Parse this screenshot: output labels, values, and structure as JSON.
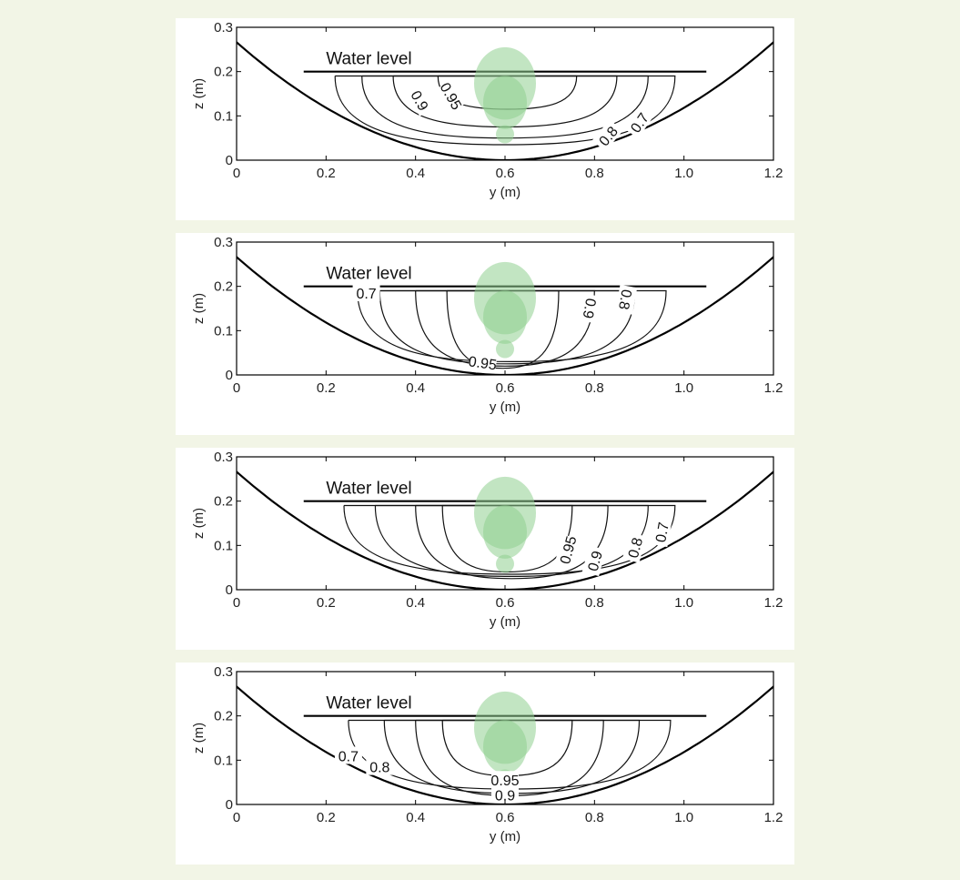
{
  "figure": {
    "background": "#f2f5e6",
    "panel_background": "#ffffff",
    "plant_color": "#8fd08f"
  },
  "chart_data": [
    {
      "type": "contour",
      "xlabel": "y (m)",
      "ylabel": "z (m)",
      "xlim": [
        0,
        1.2
      ],
      "ylim": [
        0,
        0.3
      ],
      "xticks": [
        "0",
        "0.2",
        "0.4",
        "0.6",
        "0.8",
        "1.0",
        "1.2"
      ],
      "yticks": [
        "0",
        "0.1",
        "0.2",
        "0.3"
      ],
      "grid": false,
      "channel": {
        "center_y": 0.6,
        "half_width": 0.52,
        "depth": 0.2
      },
      "water_level": {
        "z": 0.2,
        "y_range": [
          0.15,
          1.05
        ],
        "label": "Water level"
      },
      "plant": {
        "y": 0.6,
        "z_top": 0.255,
        "z_bottom": 0.04
      },
      "contours": [
        {
          "level": 0.7,
          "y_range": [
            0.22,
            0.98
          ],
          "z_range": [
            0.035,
            0.19
          ]
        },
        {
          "level": 0.8,
          "y_range": [
            0.28,
            0.92
          ],
          "z_range": [
            0.05,
            0.19
          ]
        },
        {
          "level": 0.9,
          "y_range": [
            0.35,
            0.85
          ],
          "z_range": [
            0.075,
            0.19
          ]
        },
        {
          "level": 0.95,
          "y_range": [
            0.45,
            0.76
          ],
          "z_range": [
            0.115,
            0.19
          ]
        }
      ],
      "contour_labels": [
        {
          "text": "0.9",
          "y": 0.41,
          "z": 0.135,
          "rotation": 60
        },
        {
          "text": "0.95",
          "y": 0.48,
          "z": 0.145,
          "rotation": 60
        },
        {
          "text": "0.8",
          "y": 0.83,
          "z": 0.055,
          "rotation": -50
        },
        {
          "text": "0.7",
          "y": 0.9,
          "z": 0.085,
          "rotation": -55
        }
      ]
    },
    {
      "type": "contour",
      "xlabel": "y (m)",
      "ylabel": "z (m)",
      "xlim": [
        0,
        1.2
      ],
      "ylim": [
        0,
        0.3
      ],
      "xticks": [
        "0",
        "0.2",
        "0.4",
        "0.6",
        "0.8",
        "1.0",
        "1.2"
      ],
      "yticks": [
        "0",
        "0.1",
        "0.2",
        "0.3"
      ],
      "grid": false,
      "channel": {
        "center_y": 0.6,
        "half_width": 0.52,
        "depth": 0.2
      },
      "water_level": {
        "z": 0.2,
        "y_range": [
          0.15,
          1.05
        ],
        "label": "Water level"
      },
      "plant": {
        "y": 0.6,
        "z_top": 0.255,
        "z_bottom": 0.04
      },
      "contours": [
        {
          "level": 0.7,
          "y_range": [
            0.27,
            0.96
          ],
          "z_range": [
            0.03,
            0.19
          ]
        },
        {
          "level": 0.8,
          "y_range": [
            0.32,
            0.89
          ],
          "z_range": [
            0.025,
            0.19
          ]
        },
        {
          "level": 0.9,
          "y_range": [
            0.4,
            0.8
          ],
          "z_range": [
            0.02,
            0.19
          ]
        },
        {
          "level": 0.95,
          "y_range": [
            0.47,
            0.72
          ],
          "z_range": [
            0.015,
            0.19
          ]
        }
      ],
      "contour_labels": [
        {
          "text": "0.7",
          "y": 0.29,
          "z": 0.185,
          "rotation": 0
        },
        {
          "text": "0.9",
          "y": 0.79,
          "z": 0.15,
          "rotation": 100
        },
        {
          "text": "0.8",
          "y": 0.87,
          "z": 0.17,
          "rotation": 100
        },
        {
          "text": "0.95",
          "y": 0.55,
          "z": 0.028,
          "rotation": 8
        }
      ]
    },
    {
      "type": "contour",
      "xlabel": "y (m)",
      "ylabel": "z (m)",
      "xlim": [
        0,
        1.2
      ],
      "ylim": [
        0,
        0.3
      ],
      "xticks": [
        "0",
        "0.2",
        "0.4",
        "0.6",
        "0.8",
        "1.0",
        "1.2"
      ],
      "yticks": [
        "0",
        "0.1",
        "0.2",
        "0.3"
      ],
      "grid": false,
      "channel": {
        "center_y": 0.6,
        "half_width": 0.52,
        "depth": 0.2
      },
      "water_level": {
        "z": 0.2,
        "y_range": [
          0.15,
          1.05
        ],
        "label": "Water level"
      },
      "plant": {
        "y": 0.6,
        "z_top": 0.255,
        "z_bottom": 0.04
      },
      "contours": [
        {
          "level": 0.7,
          "y_range": [
            0.24,
            0.98
          ],
          "z_range": [
            0.035,
            0.19
          ]
        },
        {
          "level": 0.8,
          "y_range": [
            0.31,
            0.92
          ],
          "z_range": [
            0.03,
            0.19
          ]
        },
        {
          "level": 0.9,
          "y_range": [
            0.4,
            0.83
          ],
          "z_range": [
            0.025,
            0.19
          ]
        },
        {
          "level": 0.95,
          "y_range": [
            0.46,
            0.75
          ],
          "z_range": [
            0.04,
            0.19
          ]
        }
      ],
      "contour_labels": [
        {
          "text": "0.95",
          "y": 0.74,
          "z": 0.09,
          "rotation": -75
        },
        {
          "text": "0.9",
          "y": 0.8,
          "z": 0.065,
          "rotation": -75
        },
        {
          "text": "0.8",
          "y": 0.89,
          "z": 0.095,
          "rotation": -75
        },
        {
          "text": "0.7",
          "y": 0.95,
          "z": 0.13,
          "rotation": -80
        }
      ]
    },
    {
      "type": "contour",
      "xlabel": "y (m)",
      "ylabel": "z (m)",
      "xlim": [
        0,
        1.2
      ],
      "ylim": [
        0,
        0.3
      ],
      "xticks": [
        "0",
        "0.2",
        "0.4",
        "0.6",
        "0.8",
        "1.0",
        "1.2"
      ],
      "yticks": [
        "0",
        "0.1",
        "0.2",
        "0.3"
      ],
      "grid": false,
      "channel": {
        "center_y": 0.6,
        "half_width": 0.52,
        "depth": 0.2
      },
      "water_level": {
        "z": 0.2,
        "y_range": [
          0.15,
          1.05
        ],
        "label": "Water level"
      },
      "plant": {
        "y": 0.6,
        "z_top": 0.255,
        "z_bottom": 0.04
      },
      "contours": [
        {
          "level": 0.7,
          "y_range": [
            0.25,
            0.97
          ],
          "z_range": [
            0.035,
            0.19
          ]
        },
        {
          "level": 0.8,
          "y_range": [
            0.33,
            0.9
          ],
          "z_range": [
            0.025,
            0.19
          ]
        },
        {
          "level": 0.9,
          "y_range": [
            0.4,
            0.82
          ],
          "z_range": [
            0.02,
            0.19
          ]
        },
        {
          "level": 0.95,
          "y_range": [
            0.46,
            0.75
          ],
          "z_range": [
            0.065,
            0.19
          ]
        }
      ],
      "contour_labels": [
        {
          "text": "0.7",
          "y": 0.25,
          "z": 0.11,
          "rotation": 0
        },
        {
          "text": "0.8",
          "y": 0.32,
          "z": 0.085,
          "rotation": 0
        },
        {
          "text": "0.95",
          "y": 0.6,
          "z": 0.055,
          "rotation": 0
        },
        {
          "text": "0.9",
          "y": 0.6,
          "z": 0.022,
          "rotation": 0
        }
      ]
    }
  ]
}
